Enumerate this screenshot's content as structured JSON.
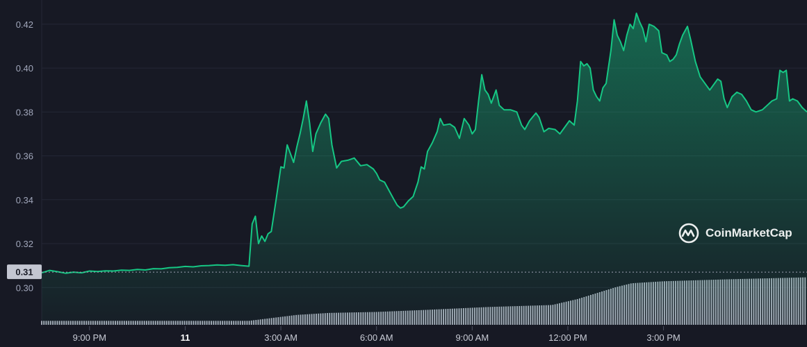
{
  "brand": {
    "name": "CoinMarketCap",
    "logo_icon": "coinmarketcap-logo-icon"
  },
  "colors": {
    "background": "#171924",
    "line": "#16c784",
    "area_top": "#16c784",
    "price_tag_bg": "#c3c6d1",
    "volume_bar": "#a7abb9"
  },
  "current_price": {
    "label": "0.31",
    "value": 0.307
  },
  "chart_data": {
    "type": "area",
    "title": "",
    "xlabel": "",
    "ylabel": "",
    "ylim": [
      0.283,
      0.4285
    ],
    "grid": true,
    "y_ticks": [
      {
        "label": "0.42",
        "value": 0.42
      },
      {
        "label": "0.40",
        "value": 0.4
      },
      {
        "label": "0.38",
        "value": 0.38
      },
      {
        "label": "0.36",
        "value": 0.36
      },
      {
        "label": "0.34",
        "value": 0.34
      },
      {
        "label": "0.32",
        "value": 0.32
      },
      {
        "label": "0.30",
        "value": 0.3
      }
    ],
    "x_range_hours": [
      -4.5,
      19.5
    ],
    "x_ticks": [
      {
        "label": "9:00 PM",
        "hour": -3,
        "day": false
      },
      {
        "label": "11",
        "hour": 0,
        "day": true
      },
      {
        "label": "3:00 AM",
        "hour": 3,
        "day": false
      },
      {
        "label": "6:00 AM",
        "hour": 6,
        "day": false
      },
      {
        "label": "9:00 AM",
        "hour": 9,
        "day": false
      },
      {
        "label": "12:00 PM",
        "hour": 12,
        "day": false
      },
      {
        "label": "3:00 PM",
        "hour": 15,
        "day": false
      }
    ],
    "series": [
      {
        "points": [
          [
            -4.5,
            0.3067
          ],
          [
            -4.25,
            0.3078
          ],
          [
            -4.0,
            0.3072
          ],
          [
            -3.75,
            0.3065
          ],
          [
            -3.5,
            0.307
          ],
          [
            -3.25,
            0.3067
          ],
          [
            -3.0,
            0.3075
          ],
          [
            -2.75,
            0.3073
          ],
          [
            -2.5,
            0.3076
          ],
          [
            -2.25,
            0.3075
          ],
          [
            -2.0,
            0.3079
          ],
          [
            -1.75,
            0.3078
          ],
          [
            -1.5,
            0.3082
          ],
          [
            -1.25,
            0.308
          ],
          [
            -1.0,
            0.3086
          ],
          [
            -0.75,
            0.3085
          ],
          [
            -0.5,
            0.309
          ],
          [
            -0.25,
            0.3092
          ],
          [
            0.0,
            0.3096
          ],
          [
            0.25,
            0.3094
          ],
          [
            0.5,
            0.3099
          ],
          [
            0.75,
            0.31
          ],
          [
            1.0,
            0.3103
          ],
          [
            1.25,
            0.3101
          ],
          [
            1.5,
            0.3104
          ],
          [
            1.75,
            0.31
          ],
          [
            2.0,
            0.3097
          ],
          [
            2.1,
            0.329
          ],
          [
            2.2,
            0.3325
          ],
          [
            2.3,
            0.32
          ],
          [
            2.4,
            0.3235
          ],
          [
            2.5,
            0.321
          ],
          [
            2.6,
            0.3245
          ],
          [
            2.7,
            0.3255
          ],
          [
            2.85,
            0.34
          ],
          [
            3.0,
            0.355
          ],
          [
            3.1,
            0.3545
          ],
          [
            3.2,
            0.365
          ],
          [
            3.4,
            0.357
          ],
          [
            3.5,
            0.364
          ],
          [
            3.6,
            0.37
          ],
          [
            3.7,
            0.377
          ],
          [
            3.8,
            0.385
          ],
          [
            3.9,
            0.375
          ],
          [
            4.0,
            0.362
          ],
          [
            4.1,
            0.37
          ],
          [
            4.25,
            0.375
          ],
          [
            4.4,
            0.379
          ],
          [
            4.5,
            0.377
          ],
          [
            4.6,
            0.365
          ],
          [
            4.75,
            0.3545
          ],
          [
            4.9,
            0.3575
          ],
          [
            5.1,
            0.358
          ],
          [
            5.3,
            0.359
          ],
          [
            5.5,
            0.3555
          ],
          [
            5.7,
            0.356
          ],
          [
            5.9,
            0.354
          ],
          [
            6.0,
            0.352
          ],
          [
            6.1,
            0.349
          ],
          [
            6.25,
            0.348
          ],
          [
            6.4,
            0.344
          ],
          [
            6.55,
            0.34
          ],
          [
            6.65,
            0.3375
          ],
          [
            6.75,
            0.3362
          ],
          [
            6.85,
            0.3368
          ],
          [
            7.0,
            0.3395
          ],
          [
            7.15,
            0.3415
          ],
          [
            7.3,
            0.348
          ],
          [
            7.4,
            0.355
          ],
          [
            7.5,
            0.354
          ],
          [
            7.6,
            0.362
          ],
          [
            7.75,
            0.366
          ],
          [
            7.9,
            0.371
          ],
          [
            8.0,
            0.377
          ],
          [
            8.1,
            0.374
          ],
          [
            8.3,
            0.3745
          ],
          [
            8.45,
            0.373
          ],
          [
            8.6,
            0.368
          ],
          [
            8.75,
            0.377
          ],
          [
            8.9,
            0.374
          ],
          [
            9.0,
            0.37
          ],
          [
            9.1,
            0.372
          ],
          [
            9.2,
            0.385
          ],
          [
            9.3,
            0.397
          ],
          [
            9.4,
            0.39
          ],
          [
            9.5,
            0.388
          ],
          [
            9.6,
            0.384
          ],
          [
            9.75,
            0.39
          ],
          [
            9.85,
            0.383
          ],
          [
            10.0,
            0.381
          ],
          [
            10.2,
            0.381
          ],
          [
            10.4,
            0.38
          ],
          [
            10.55,
            0.374
          ],
          [
            10.65,
            0.372
          ],
          [
            10.8,
            0.376
          ],
          [
            11.0,
            0.3795
          ],
          [
            11.1,
            0.3775
          ],
          [
            11.25,
            0.371
          ],
          [
            11.4,
            0.3725
          ],
          [
            11.6,
            0.372
          ],
          [
            11.75,
            0.37
          ],
          [
            11.9,
            0.373
          ],
          [
            12.05,
            0.376
          ],
          [
            12.2,
            0.374
          ],
          [
            12.3,
            0.385
          ],
          [
            12.4,
            0.403
          ],
          [
            12.5,
            0.401
          ],
          [
            12.6,
            0.402
          ],
          [
            12.7,
            0.4
          ],
          [
            12.8,
            0.39
          ],
          [
            12.9,
            0.387
          ],
          [
            13.0,
            0.385
          ],
          [
            13.1,
            0.391
          ],
          [
            13.2,
            0.393
          ],
          [
            13.35,
            0.408
          ],
          [
            13.45,
            0.422
          ],
          [
            13.55,
            0.415
          ],
          [
            13.65,
            0.412
          ],
          [
            13.75,
            0.408
          ],
          [
            13.85,
            0.415
          ],
          [
            13.95,
            0.42
          ],
          [
            14.05,
            0.418
          ],
          [
            14.15,
            0.425
          ],
          [
            14.25,
            0.421
          ],
          [
            14.35,
            0.418
          ],
          [
            14.45,
            0.412
          ],
          [
            14.55,
            0.42
          ],
          [
            14.7,
            0.419
          ],
          [
            14.85,
            0.417
          ],
          [
            14.95,
            0.407
          ],
          [
            15.1,
            0.406
          ],
          [
            15.2,
            0.403
          ],
          [
            15.3,
            0.404
          ],
          [
            15.4,
            0.406
          ],
          [
            15.5,
            0.411
          ],
          [
            15.6,
            0.415
          ],
          [
            15.75,
            0.419
          ],
          [
            15.85,
            0.413
          ],
          [
            16.0,
            0.403
          ],
          [
            16.15,
            0.396
          ],
          [
            16.3,
            0.393
          ],
          [
            16.45,
            0.39
          ],
          [
            16.55,
            0.392
          ],
          [
            16.7,
            0.395
          ],
          [
            16.8,
            0.394
          ],
          [
            16.9,
            0.386
          ],
          [
            17.0,
            0.382
          ],
          [
            17.15,
            0.387
          ],
          [
            17.3,
            0.389
          ],
          [
            17.45,
            0.388
          ],
          [
            17.6,
            0.385
          ],
          [
            17.75,
            0.381
          ],
          [
            17.9,
            0.38
          ],
          [
            18.1,
            0.381
          ],
          [
            18.25,
            0.383
          ],
          [
            18.4,
            0.385
          ],
          [
            18.55,
            0.386
          ],
          [
            18.65,
            0.399
          ],
          [
            18.75,
            0.398
          ],
          [
            18.85,
            0.399
          ],
          [
            18.95,
            0.385
          ],
          [
            19.05,
            0.386
          ],
          [
            19.2,
            0.385
          ],
          [
            19.35,
            0.382
          ],
          [
            19.5,
            0.38
          ]
        ]
      }
    ],
    "volume": {
      "levels": [
        [
          -4.5,
          0.2
        ],
        [
          2.0,
          0.2
        ],
        [
          2.5,
          0.3
        ],
        [
          3.0,
          0.4
        ],
        [
          3.5,
          0.5
        ],
        [
          4.5,
          0.6
        ],
        [
          6.0,
          0.65
        ],
        [
          7.5,
          0.75
        ],
        [
          9.5,
          0.9
        ],
        [
          11.5,
          1.0
        ],
        [
          12.3,
          1.3
        ],
        [
          12.7,
          1.5
        ],
        [
          13.5,
          1.9
        ],
        [
          14.0,
          2.1
        ],
        [
          15.0,
          2.2
        ],
        [
          17.0,
          2.3
        ],
        [
          19.5,
          2.4
        ]
      ],
      "bar_width_hours": 0.07
    }
  }
}
